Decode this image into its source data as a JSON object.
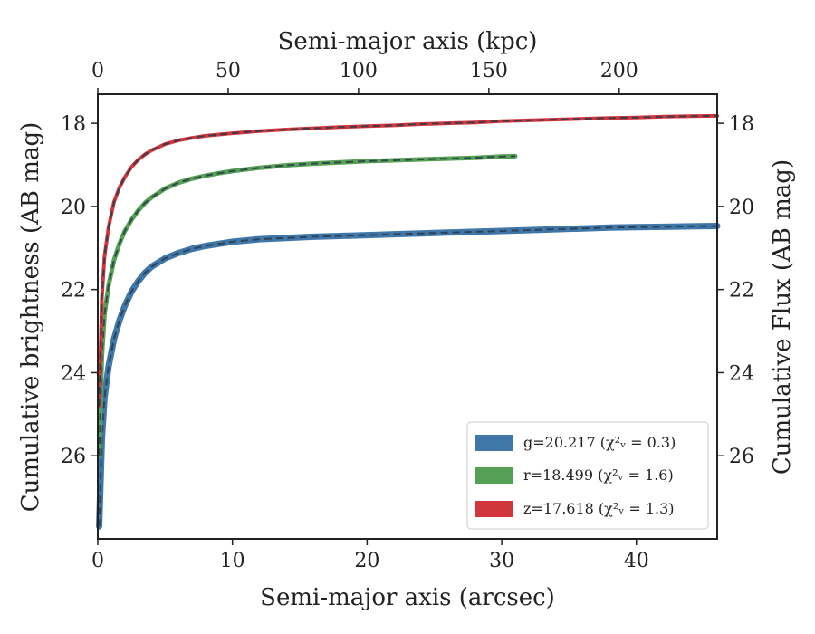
{
  "chart_data": {
    "type": "line",
    "title": "",
    "xlabel": "Semi-major axis (arcsec)",
    "ylabel": "Cumulative brightness (AB mag)",
    "x2label": "Semi-major axis (kpc)",
    "y2label": "Cumulative Flux (AB mag)",
    "xlim": [
      0,
      46
    ],
    "ylim": [
      28.0,
      17.3
    ],
    "y_inverted": true,
    "x_ticks": [
      0,
      10,
      20,
      30,
      40
    ],
    "y_ticks": [
      18,
      20,
      22,
      24,
      26
    ],
    "x2_ticks": [
      0,
      50,
      100,
      150,
      200
    ],
    "x2_per_x": 5.165,
    "grid": false,
    "legend": "bottom-right",
    "series": [
      {
        "name": "g=20.217",
        "chi_label": "(χ²ᵥ = 0.3)",
        "color": "#3f77a8",
        "x": [
          0.1,
          0.3,
          0.5,
          0.8,
          1.2,
          1.6,
          2,
          2.5,
          3,
          3.5,
          4,
          5,
          6,
          7,
          8,
          9,
          10,
          12,
          14,
          16,
          18,
          20,
          22,
          24,
          26,
          28,
          30,
          32,
          34,
          36,
          38,
          40,
          42,
          44,
          46
        ],
        "y": [
          27.7,
          25.6,
          24.6,
          23.85,
          23.2,
          22.75,
          22.4,
          22.05,
          21.8,
          21.6,
          21.45,
          21.25,
          21.12,
          21.02,
          20.95,
          20.9,
          20.85,
          20.79,
          20.76,
          20.73,
          20.71,
          20.69,
          20.67,
          20.65,
          20.63,
          20.61,
          20.59,
          20.57,
          20.55,
          20.53,
          20.51,
          20.5,
          20.49,
          20.48,
          20.47
        ],
        "width": 7
      },
      {
        "name": "r=18.499",
        "chi_label": "(χ²ᵥ = 1.6)",
        "color": "#55a055",
        "x": [
          0.1,
          0.3,
          0.5,
          0.8,
          1.2,
          1.6,
          2,
          2.5,
          3,
          3.5,
          4,
          5,
          6,
          7,
          8,
          9,
          10,
          12,
          14,
          16,
          18,
          20,
          22,
          24,
          26,
          28,
          30,
          31
        ],
        "y": [
          26.0,
          23.6,
          22.6,
          21.9,
          21.3,
          20.9,
          20.6,
          20.32,
          20.1,
          19.92,
          19.78,
          19.57,
          19.43,
          19.33,
          19.26,
          19.2,
          19.15,
          19.07,
          19.01,
          18.97,
          18.94,
          18.91,
          18.89,
          18.87,
          18.85,
          18.83,
          18.8,
          18.79
        ],
        "width": 5
      },
      {
        "name": "z=17.618",
        "chi_label": "(χ²ᵥ = 1.3)",
        "color": "#d0363c",
        "x": [
          0.1,
          0.3,
          0.5,
          0.8,
          1.2,
          1.6,
          2,
          2.5,
          3,
          3.5,
          4,
          5,
          6,
          7,
          8,
          9,
          10,
          12,
          14,
          16,
          18,
          20,
          22,
          24,
          26,
          28,
          30,
          32,
          34,
          36,
          38,
          40,
          42,
          44,
          46
        ],
        "y": [
          24.8,
          22.2,
          21.2,
          20.5,
          19.9,
          19.55,
          19.3,
          19.05,
          18.88,
          18.75,
          18.65,
          18.5,
          18.41,
          18.35,
          18.3,
          18.27,
          18.24,
          18.19,
          18.15,
          18.12,
          18.09,
          18.07,
          18.05,
          18.02,
          18.0,
          17.98,
          17.95,
          17.93,
          17.91,
          17.89,
          17.87,
          17.86,
          17.84,
          17.83,
          17.82
        ],
        "width": 4
      }
    ]
  }
}
